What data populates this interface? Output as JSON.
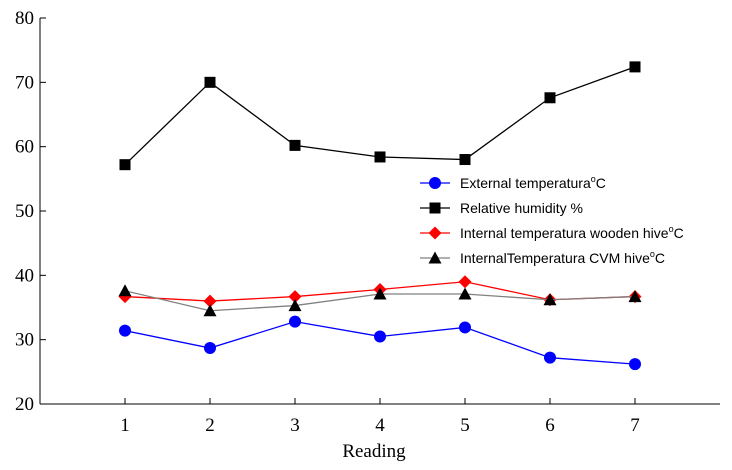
{
  "chart_data": {
    "type": "line",
    "xlabel": "Reading",
    "ylabel": "",
    "x": [
      1,
      2,
      3,
      4,
      5,
      6,
      7
    ],
    "xticks": [
      "1",
      "2",
      "3",
      "4",
      "5",
      "6",
      "7"
    ],
    "yticks": [
      "20",
      "30",
      "40",
      "50",
      "60",
      "70",
      "80"
    ],
    "xlim": [
      0,
      8
    ],
    "ylim": [
      20,
      80
    ],
    "grid": false,
    "legend_position": "right-middle",
    "series": [
      {
        "name": "External temperatura",
        "unit": "C",
        "unit_superscript": "o",
        "values": [
          31.4,
          28.7,
          32.8,
          30.5,
          31.9,
          27.2,
          26.2
        ],
        "color": "#0000ff",
        "marker": "circle",
        "line_color": "#0000ff"
      },
      {
        "name": "Relative humidity %",
        "unit": "",
        "unit_superscript": "",
        "values": [
          57.2,
          70.0,
          60.2,
          58.4,
          58.0,
          67.6,
          72.4
        ],
        "color": "#000000",
        "marker": "square",
        "line_color": "#000000"
      },
      {
        "name": "Internal temperatura wooden hive",
        "unit": "C",
        "unit_superscript": "o",
        "values": [
          36.7,
          36.0,
          36.7,
          37.8,
          39.0,
          36.2,
          36.7
        ],
        "color": "#ff0000",
        "marker": "diamond",
        "line_color": "#ff0000"
      },
      {
        "name": "InternalTemperatura CVM hive",
        "unit": "C",
        "unit_superscript": "o",
        "values": [
          37.6,
          34.5,
          35.3,
          37.1,
          37.1,
          36.2,
          36.7
        ],
        "color": "#000000",
        "marker": "triangle",
        "line_color": "#808080"
      }
    ]
  }
}
